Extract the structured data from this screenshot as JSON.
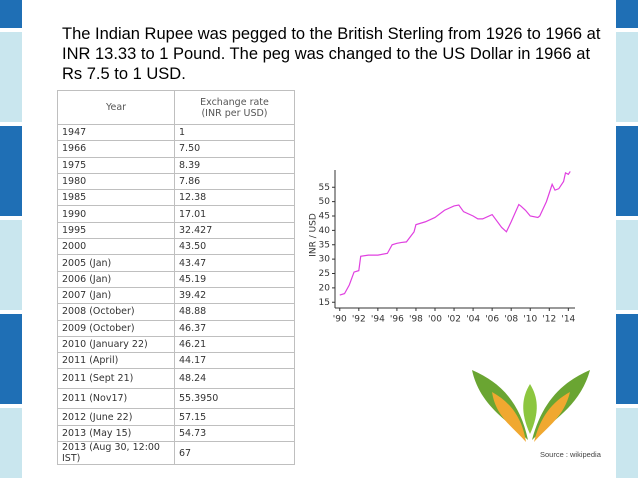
{
  "text": {
    "title": "The Indian Rupee was pegged to the British Sterling from 1926 to 1966 at INR 13.33 to 1 Pound. The peg was changed to the US Dollar in 1966 at Rs 7.5 to 1 USD."
  },
  "table": {
    "header": [
      "Year",
      "Exchange rate (INR per USD)"
    ],
    "rows": [
      [
        "1947",
        "1"
      ],
      [
        "1966",
        "7.50"
      ],
      [
        "1975",
        "8.39"
      ],
      [
        "1980",
        "7.86"
      ],
      [
        "1985",
        "12.38"
      ],
      [
        "1990",
        "17.01"
      ],
      [
        "1995",
        "32.427"
      ],
      [
        "2000",
        "43.50"
      ],
      [
        "2005 (Jan)",
        "43.47"
      ],
      [
        "2006 (Jan)",
        "45.19"
      ],
      [
        "2007 (Jan)",
        "39.42"
      ],
      [
        "2008 (October)",
        "48.88"
      ],
      [
        "2009 (October)",
        "46.37"
      ],
      [
        "2010 (January 22)",
        "46.21"
      ],
      [
        "2011 (April)",
        "44.17"
      ],
      [
        "2011 (Sept 21)",
        "48.24"
      ],
      [
        "2011 (Nov17)",
        "55.3950"
      ],
      [
        "2012 (June 22)",
        "57.15"
      ],
      [
        "2013 (May 15)",
        "54.73"
      ],
      [
        "2013 (Aug 30, 12:00 IST)",
        "67"
      ]
    ]
  },
  "chart_data": {
    "type": "line",
    "y_label": "INR / USD",
    "color": "#e040e0",
    "x": [
      1990,
      1990.5,
      1991,
      1991.5,
      1992,
      1992.2,
      1993,
      1994,
      1995,
      1995.5,
      1996,
      1996.5,
      1997,
      1997.8,
      1998,
      1999,
      2000,
      2001,
      2002,
      2002.5,
      2003,
      2004,
      2004.5,
      2005,
      2006,
      2007,
      2007.5,
      2008,
      2008.8,
      2009,
      2009.5,
      2010,
      2010.8,
      2011,
      2011.7,
      2012,
      2012.3,
      2012.6,
      2013,
      2013.5,
      2013.7,
      2014,
      2014.2
    ],
    "values": [
      17.5,
      18,
      21,
      25.5,
      26,
      31,
      31.4,
      31.4,
      32,
      35,
      35.5,
      35.8,
      36,
      39.5,
      42,
      43,
      44.5,
      47,
      48.5,
      48.8,
      46.5,
      45,
      44,
      44,
      45.5,
      41,
      39.5,
      43,
      49,
      48.5,
      47,
      45,
      44.5,
      45,
      50,
      53,
      56,
      54,
      54.5,
      57,
      60,
      59.5,
      60.5
    ],
    "xlim": [
      1989.5,
      2014.7
    ],
    "ylim": [
      13,
      61
    ],
    "xticks": [
      {
        "value": 1990,
        "label": "'90"
      },
      {
        "value": 1992,
        "label": "'92"
      },
      {
        "value": 1994,
        "label": "'94"
      },
      {
        "value": 1996,
        "label": "'96"
      },
      {
        "value": 1998,
        "label": "'98"
      },
      {
        "value": 2000,
        "label": "'00"
      },
      {
        "value": 2002,
        "label": "'02"
      },
      {
        "value": 2004,
        "label": "'04"
      },
      {
        "value": 2006,
        "label": "'06"
      },
      {
        "value": 2008,
        "label": "'08"
      },
      {
        "value": 2010,
        "label": "'10"
      },
      {
        "value": 2012,
        "label": "'12"
      },
      {
        "value": 2014,
        "label": "'14"
      }
    ],
    "yticks": [
      15,
      20,
      25,
      30,
      35,
      40,
      45,
      50,
      55
    ]
  },
  "source": "Source : wikipedia"
}
